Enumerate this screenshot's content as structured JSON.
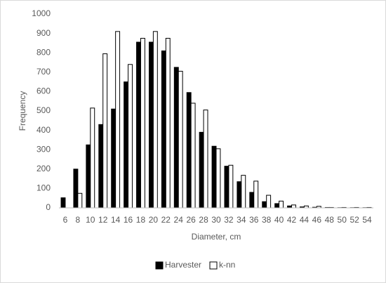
{
  "chart_data": {
    "type": "bar",
    "x_label": "Diameter, cm",
    "y_label": "Frequency",
    "categories": [
      "6",
      "8",
      "10",
      "12",
      "14",
      "16",
      "18",
      "20",
      "22",
      "24",
      "26",
      "28",
      "30",
      "32",
      "34",
      "36",
      "38",
      "40",
      "42",
      "44",
      "46",
      "48",
      "50",
      "52",
      "54"
    ],
    "series": [
      {
        "name": "Harvester",
        "color": "#000000",
        "values": [
          52,
          200,
          325,
          430,
          510,
          650,
          855,
          855,
          810,
          725,
          595,
          390,
          318,
          215,
          135,
          80,
          32,
          22,
          10,
          5,
          3,
          2,
          1,
          1,
          1
        ]
      },
      {
        "name": "k-nn",
        "color": "#ffffff",
        "values": [
          0,
          75,
          515,
          795,
          910,
          740,
          875,
          910,
          875,
          705,
          540,
          505,
          305,
          220,
          168,
          138,
          65,
          35,
          15,
          10,
          8,
          2,
          2,
          2,
          2
        ]
      }
    ],
    "ylim": [
      0,
      1000
    ],
    "yticks": [
      0,
      100,
      200,
      300,
      400,
      500,
      600,
      700,
      800,
      900,
      1000
    ],
    "grid": false,
    "legend": "bottom"
  }
}
